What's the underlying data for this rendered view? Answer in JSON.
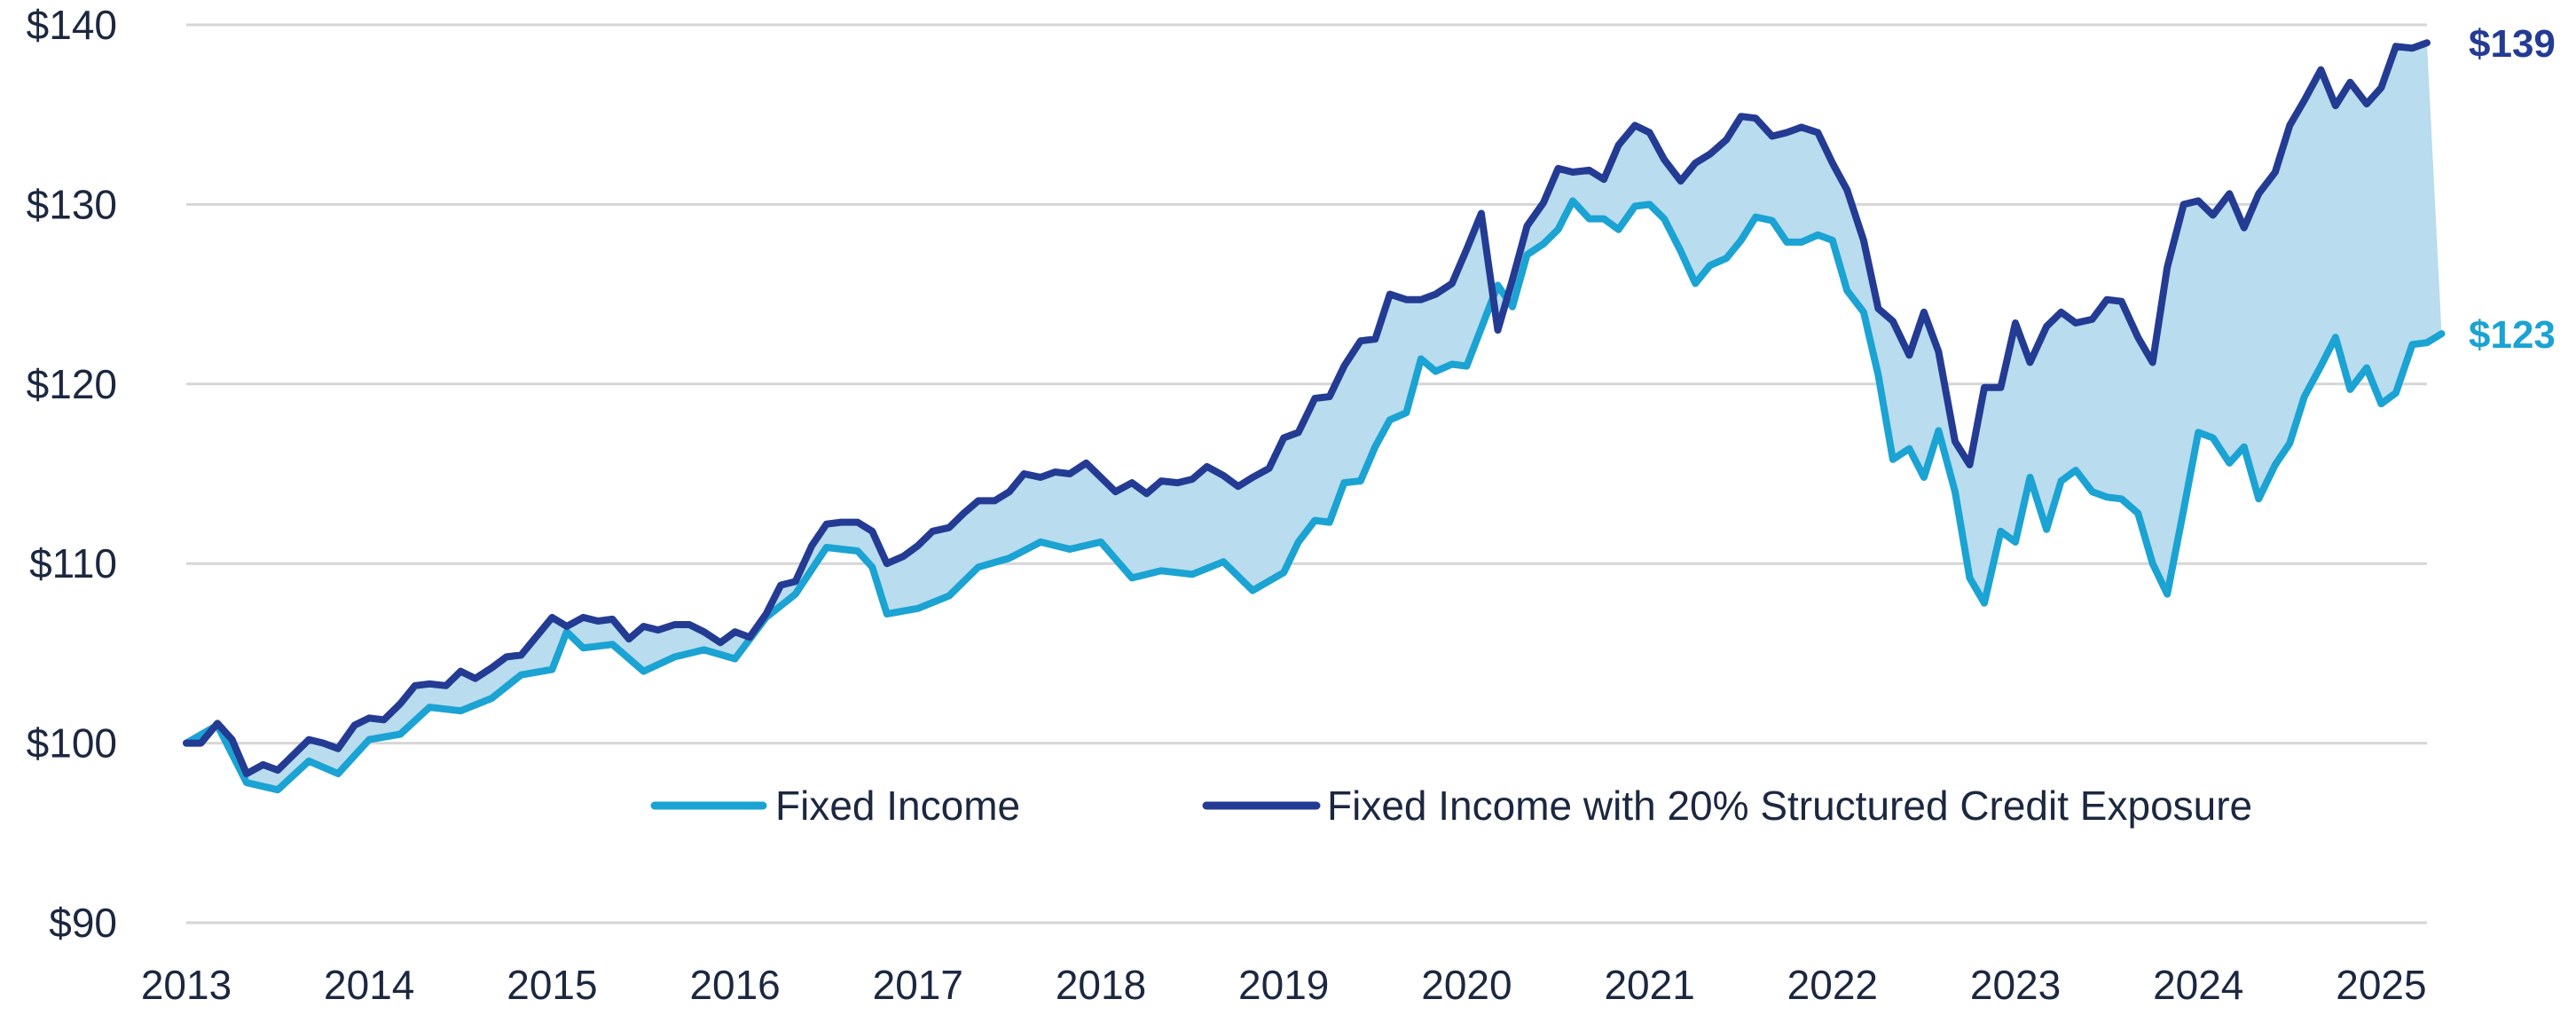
{
  "chart_data": {
    "type": "line",
    "title": "",
    "xlabel": "",
    "ylabel": "",
    "xlim": [
      2013,
      2025.25
    ],
    "ylim": [
      90,
      140
    ],
    "x_ticks": [
      2013,
      2014,
      2015,
      2016,
      2017,
      2018,
      2019,
      2020,
      2021,
      2022,
      2023,
      2024,
      2025
    ],
    "x_tick_labels": [
      "2013",
      "2014",
      "2015",
      "2016",
      "2017",
      "2018",
      "2019",
      "2020",
      "2021",
      "2022",
      "2023",
      "2024",
      "2025"
    ],
    "y_ticks": [
      90,
      100,
      110,
      120,
      130,
      140
    ],
    "y_tick_labels": [
      "$90",
      "$100",
      "$110",
      "$120",
      "$130",
      "$140"
    ],
    "grid": true,
    "legend_position": "bottom-right",
    "fill_between_series": true,
    "fill_color": "#b9dcee",
    "series": [
      {
        "name": "Fixed Income",
        "color": "#1aa3d3",
        "end_label": "$123",
        "points": [
          [
            2013.0,
            100.0
          ],
          [
            2013.17,
            101.0
          ],
          [
            2013.33,
            97.8
          ],
          [
            2013.5,
            97.4
          ],
          [
            2013.67,
            99.0
          ],
          [
            2013.83,
            98.3
          ],
          [
            2014.0,
            100.2
          ],
          [
            2014.17,
            100.5
          ],
          [
            2014.33,
            102.0
          ],
          [
            2014.5,
            101.8
          ],
          [
            2014.67,
            102.5
          ],
          [
            2014.83,
            103.8
          ],
          [
            2015.0,
            104.1
          ],
          [
            2015.08,
            106.2
          ],
          [
            2015.17,
            105.3
          ],
          [
            2015.33,
            105.5
          ],
          [
            2015.5,
            104.0
          ],
          [
            2015.67,
            104.8
          ],
          [
            2015.83,
            105.2
          ],
          [
            2016.0,
            104.7
          ],
          [
            2016.17,
            107.0
          ],
          [
            2016.33,
            108.3
          ],
          [
            2016.5,
            110.9
          ],
          [
            2016.67,
            110.7
          ],
          [
            2016.75,
            109.8
          ],
          [
            2016.83,
            107.2
          ],
          [
            2017.0,
            107.5
          ],
          [
            2017.17,
            108.2
          ],
          [
            2017.33,
            109.8
          ],
          [
            2017.5,
            110.3
          ],
          [
            2017.67,
            111.2
          ],
          [
            2017.83,
            110.8
          ],
          [
            2018.0,
            111.2
          ],
          [
            2018.17,
            109.2
          ],
          [
            2018.33,
            109.6
          ],
          [
            2018.5,
            109.4
          ],
          [
            2018.67,
            110.1
          ],
          [
            2018.83,
            108.5
          ],
          [
            2019.0,
            109.5
          ],
          [
            2019.08,
            111.2
          ],
          [
            2019.17,
            112.4
          ],
          [
            2019.25,
            112.3
          ],
          [
            2019.33,
            114.5
          ],
          [
            2019.42,
            114.6
          ],
          [
            2019.5,
            116.5
          ],
          [
            2019.58,
            118.0
          ],
          [
            2019.67,
            118.4
          ],
          [
            2019.75,
            121.4
          ],
          [
            2019.83,
            120.7
          ],
          [
            2019.92,
            121.1
          ],
          [
            2020.0,
            121.0
          ],
          [
            2020.17,
            125.5
          ],
          [
            2020.25,
            124.3
          ],
          [
            2020.33,
            127.2
          ],
          [
            2020.42,
            127.8
          ],
          [
            2020.5,
            128.6
          ],
          [
            2020.58,
            130.2
          ],
          [
            2020.67,
            129.2
          ],
          [
            2020.75,
            129.2
          ],
          [
            2020.83,
            128.6
          ],
          [
            2020.92,
            129.9
          ],
          [
            2021.0,
            130.0
          ],
          [
            2021.08,
            129.2
          ],
          [
            2021.17,
            127.4
          ],
          [
            2021.25,
            125.6
          ],
          [
            2021.33,
            126.6
          ],
          [
            2021.42,
            127.0
          ],
          [
            2021.5,
            128.0
          ],
          [
            2021.58,
            129.3
          ],
          [
            2021.67,
            129.1
          ],
          [
            2021.75,
            127.9
          ],
          [
            2021.83,
            127.9
          ],
          [
            2021.92,
            128.3
          ],
          [
            2022.0,
            128.0
          ],
          [
            2022.08,
            125.2
          ],
          [
            2022.17,
            124.0
          ],
          [
            2022.25,
            120.5
          ],
          [
            2022.33,
            115.8
          ],
          [
            2022.42,
            116.4
          ],
          [
            2022.5,
            114.8
          ],
          [
            2022.58,
            117.4
          ],
          [
            2022.67,
            114.0
          ],
          [
            2022.75,
            109.2
          ],
          [
            2022.83,
            107.8
          ],
          [
            2022.92,
            111.8
          ],
          [
            2023.0,
            111.2
          ],
          [
            2023.08,
            114.8
          ],
          [
            2023.17,
            111.9
          ],
          [
            2023.25,
            114.6
          ],
          [
            2023.33,
            115.2
          ],
          [
            2023.42,
            114.0
          ],
          [
            2023.5,
            113.7
          ],
          [
            2023.58,
            113.6
          ],
          [
            2023.67,
            112.8
          ],
          [
            2023.75,
            110.0
          ],
          [
            2023.83,
            108.3
          ],
          [
            2023.92,
            113.0
          ],
          [
            2024.0,
            117.3
          ],
          [
            2024.08,
            117.0
          ],
          [
            2024.17,
            115.6
          ],
          [
            2024.25,
            116.5
          ],
          [
            2024.33,
            113.6
          ],
          [
            2024.42,
            115.5
          ],
          [
            2024.5,
            116.7
          ],
          [
            2024.58,
            119.3
          ],
          [
            2024.67,
            121.0
          ],
          [
            2024.75,
            122.6
          ],
          [
            2024.83,
            119.7
          ],
          [
            2024.92,
            120.9
          ],
          [
            2025.0,
            118.9
          ],
          [
            2025.08,
            119.5
          ],
          [
            2025.17,
            122.2
          ],
          [
            2025.25,
            122.3
          ],
          [
            2025.33,
            122.8
          ]
        ]
      },
      {
        "name": "Fixed Income with 20% Structured Credit Exposure",
        "color": "#243b94",
        "end_label": "$139",
        "points": [
          [
            2013.0,
            100.0
          ],
          [
            2013.08,
            100.0
          ],
          [
            2013.17,
            101.1
          ],
          [
            2013.25,
            100.2
          ],
          [
            2013.33,
            98.3
          ],
          [
            2013.42,
            98.8
          ],
          [
            2013.5,
            98.5
          ],
          [
            2013.67,
            100.2
          ],
          [
            2013.75,
            100.0
          ],
          [
            2013.83,
            99.7
          ],
          [
            2013.92,
            101.0
          ],
          [
            2014.0,
            101.4
          ],
          [
            2014.08,
            101.3
          ],
          [
            2014.17,
            102.2
          ],
          [
            2014.25,
            103.2
          ],
          [
            2014.33,
            103.3
          ],
          [
            2014.42,
            103.2
          ],
          [
            2014.5,
            104.0
          ],
          [
            2014.58,
            103.6
          ],
          [
            2014.67,
            104.2
          ],
          [
            2014.75,
            104.8
          ],
          [
            2014.83,
            104.9
          ],
          [
            2015.0,
            107.0
          ],
          [
            2015.08,
            106.5
          ],
          [
            2015.17,
            107.0
          ],
          [
            2015.25,
            106.8
          ],
          [
            2015.33,
            106.9
          ],
          [
            2015.42,
            105.8
          ],
          [
            2015.5,
            106.5
          ],
          [
            2015.58,
            106.3
          ],
          [
            2015.67,
            106.6
          ],
          [
            2015.75,
            106.6
          ],
          [
            2015.83,
            106.2
          ],
          [
            2015.92,
            105.6
          ],
          [
            2016.0,
            106.2
          ],
          [
            2016.08,
            105.9
          ],
          [
            2016.17,
            107.2
          ],
          [
            2016.25,
            108.8
          ],
          [
            2016.33,
            109.0
          ],
          [
            2016.42,
            111.0
          ],
          [
            2016.5,
            112.2
          ],
          [
            2016.58,
            112.3
          ],
          [
            2016.67,
            112.3
          ],
          [
            2016.75,
            111.8
          ],
          [
            2016.83,
            110.0
          ],
          [
            2016.92,
            110.4
          ],
          [
            2017.0,
            111.0
          ],
          [
            2017.08,
            111.8
          ],
          [
            2017.17,
            112.0
          ],
          [
            2017.25,
            112.8
          ],
          [
            2017.33,
            113.5
          ],
          [
            2017.42,
            113.5
          ],
          [
            2017.5,
            114.0
          ],
          [
            2017.58,
            115.0
          ],
          [
            2017.67,
            114.8
          ],
          [
            2017.75,
            115.1
          ],
          [
            2017.83,
            115.0
          ],
          [
            2017.92,
            115.6
          ],
          [
            2018.0,
            114.8
          ],
          [
            2018.08,
            114.0
          ],
          [
            2018.17,
            114.5
          ],
          [
            2018.25,
            113.9
          ],
          [
            2018.33,
            114.6
          ],
          [
            2018.42,
            114.5
          ],
          [
            2018.5,
            114.7
          ],
          [
            2018.58,
            115.4
          ],
          [
            2018.67,
            114.9
          ],
          [
            2018.75,
            114.3
          ],
          [
            2018.83,
            114.8
          ],
          [
            2018.92,
            115.3
          ],
          [
            2019.0,
            117.0
          ],
          [
            2019.08,
            117.3
          ],
          [
            2019.17,
            119.2
          ],
          [
            2019.25,
            119.3
          ],
          [
            2019.33,
            121.0
          ],
          [
            2019.42,
            122.4
          ],
          [
            2019.5,
            122.5
          ],
          [
            2019.58,
            125.0
          ],
          [
            2019.67,
            124.7
          ],
          [
            2019.75,
            124.7
          ],
          [
            2019.83,
            125.0
          ],
          [
            2019.92,
            125.6
          ],
          [
            2020.0,
            127.5
          ],
          [
            2020.08,
            129.5
          ],
          [
            2020.17,
            123.0
          ],
          [
            2020.25,
            125.8
          ],
          [
            2020.33,
            128.8
          ],
          [
            2020.42,
            130.1
          ],
          [
            2020.5,
            132.0
          ],
          [
            2020.58,
            131.8
          ],
          [
            2020.67,
            131.9
          ],
          [
            2020.75,
            131.4
          ],
          [
            2020.83,
            133.3
          ],
          [
            2020.92,
            134.4
          ],
          [
            2021.0,
            134.0
          ],
          [
            2021.08,
            132.5
          ],
          [
            2021.17,
            131.3
          ],
          [
            2021.25,
            132.3
          ],
          [
            2021.33,
            132.8
          ],
          [
            2021.42,
            133.6
          ],
          [
            2021.5,
            134.9
          ],
          [
            2021.58,
            134.8
          ],
          [
            2021.67,
            133.8
          ],
          [
            2021.75,
            134.0
          ],
          [
            2021.83,
            134.3
          ],
          [
            2021.92,
            134.0
          ],
          [
            2022.0,
            132.3
          ],
          [
            2022.08,
            130.8
          ],
          [
            2022.17,
            128.0
          ],
          [
            2022.25,
            124.2
          ],
          [
            2022.33,
            123.5
          ],
          [
            2022.42,
            121.6
          ],
          [
            2022.5,
            124.0
          ],
          [
            2022.58,
            121.8
          ],
          [
            2022.67,
            116.8
          ],
          [
            2022.75,
            115.5
          ],
          [
            2022.83,
            119.8
          ],
          [
            2022.92,
            119.8
          ],
          [
            2023.0,
            123.4
          ],
          [
            2023.08,
            121.2
          ],
          [
            2023.17,
            123.2
          ],
          [
            2023.25,
            124.0
          ],
          [
            2023.33,
            123.4
          ],
          [
            2023.42,
            123.6
          ],
          [
            2023.5,
            124.7
          ],
          [
            2023.58,
            124.6
          ],
          [
            2023.67,
            122.6
          ],
          [
            2023.75,
            121.2
          ],
          [
            2023.83,
            126.5
          ],
          [
            2023.92,
            130.0
          ],
          [
            2024.0,
            130.2
          ],
          [
            2024.08,
            129.4
          ],
          [
            2024.17,
            130.6
          ],
          [
            2024.25,
            128.7
          ],
          [
            2024.33,
            130.6
          ],
          [
            2024.42,
            131.8
          ],
          [
            2024.5,
            134.4
          ],
          [
            2024.58,
            135.8
          ],
          [
            2024.67,
            137.5
          ],
          [
            2024.75,
            135.5
          ],
          [
            2024.83,
            136.8
          ],
          [
            2024.92,
            135.6
          ],
          [
            2025.0,
            136.5
          ],
          [
            2025.08,
            138.8
          ],
          [
            2025.17,
            138.7
          ],
          [
            2025.25,
            139.0
          ]
        ]
      }
    ]
  }
}
